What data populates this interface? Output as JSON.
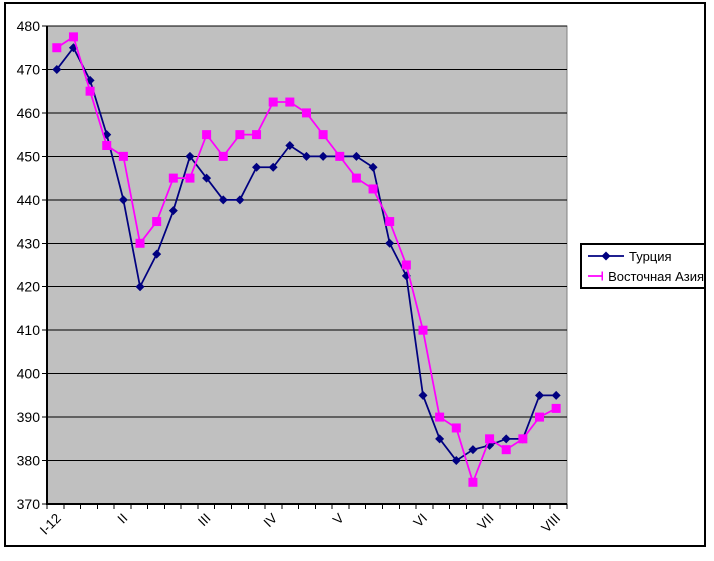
{
  "window": {
    "background": "#FFFFFF",
    "border_color": "#000000"
  },
  "chart_data": {
    "type": "line",
    "title": "",
    "xlabel": "",
    "ylabel": "",
    "plot_background": "#C0C0C0",
    "gridlines": "horizontal",
    "legend_position": "right",
    "y_axis": {
      "min": 370,
      "max": 480,
      "step": 10,
      "tick_values": [
        370,
        380,
        390,
        400,
        410,
        420,
        430,
        440,
        450,
        460,
        470,
        480
      ]
    },
    "x_axis": {
      "n_points": 31,
      "label_rotation_deg": -45,
      "tick_labels": [
        {
          "index": 0,
          "label": "I-12"
        },
        {
          "index": 4,
          "label": "II"
        },
        {
          "index": 9,
          "label": "III"
        },
        {
          "index": 13,
          "label": "IV"
        },
        {
          "index": 17,
          "label": "V"
        },
        {
          "index": 22,
          "label": "VI"
        },
        {
          "index": 26,
          "label": "VII"
        },
        {
          "index": 30,
          "label": "VIII"
        }
      ]
    },
    "series": [
      {
        "name": "Турция",
        "color": "#000080",
        "marker": "diamond",
        "values": [
          470,
          475,
          467.5,
          455,
          440,
          420,
          427.5,
          437.5,
          450,
          445,
          440,
          440,
          447.5,
          447.5,
          452.5,
          450,
          450,
          450,
          450,
          447.5,
          430,
          422.5,
          395,
          385,
          380,
          382.5,
          383.5,
          385,
          385,
          395,
          395
        ]
      },
      {
        "name": "Восточная Азия",
        "color": "#FF00FF",
        "marker": "square",
        "values": [
          475,
          477.5,
          465,
          452.5,
          450,
          430,
          435,
          445,
          445,
          455,
          450,
          455,
          455,
          462.5,
          462.5,
          460,
          455,
          450,
          445,
          442.5,
          435,
          425,
          410,
          390,
          387.5,
          375,
          385,
          382.5,
          385,
          390,
          392
        ]
      }
    ]
  }
}
